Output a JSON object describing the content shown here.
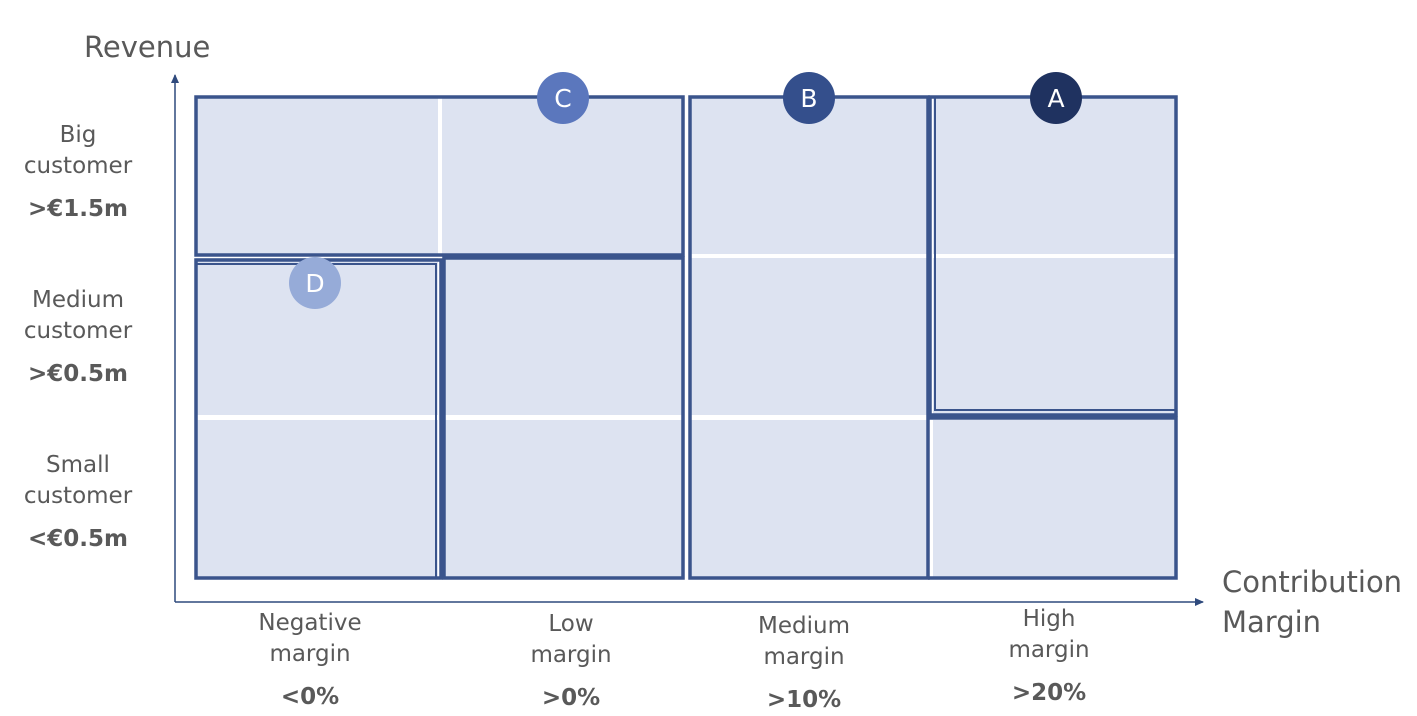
{
  "axes": {
    "y_title": "Revenue",
    "x_title_line1": "Contribution",
    "x_title_line2": "Margin"
  },
  "rows": [
    {
      "line1": "Big",
      "line2": "customer",
      "threshold": ">€1.5m"
    },
    {
      "line1": "Medium",
      "line2": "customer",
      "threshold": ">€0.5m"
    },
    {
      "line1": "Small",
      "line2": "customer",
      "threshold": "<€0.5m"
    }
  ],
  "columns": [
    {
      "line1": "Negative",
      "line2": "margin",
      "threshold": "<0%"
    },
    {
      "line1": "Low",
      "line2": "margin",
      "threshold": ">0%"
    },
    {
      "line1": "Medium",
      "line2": "margin",
      "threshold": ">10%"
    },
    {
      "line1": "High",
      "line2": "margin",
      "threshold": ">20%"
    }
  ],
  "segments": [
    {
      "label": "A",
      "color": "#1f3260"
    },
    {
      "label": "B",
      "color": "#344f8c"
    },
    {
      "label": "C",
      "color": "#5b77bd"
    },
    {
      "label": "D",
      "color": "#96abd8"
    }
  ],
  "colors": {
    "cell_fill": "#dde3f1",
    "border": "#3a548c",
    "axis": "#2f4a7d",
    "text": "#595959"
  }
}
